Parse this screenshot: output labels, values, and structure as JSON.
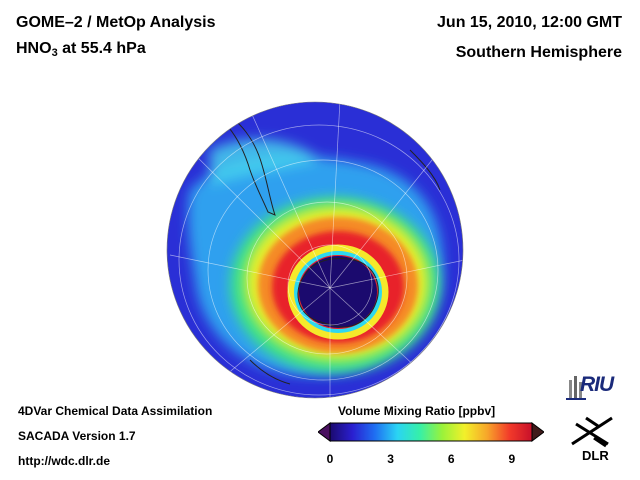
{
  "header": {
    "title_line1": "GOME–2 / MetOp Analysis",
    "species_base": "HNO",
    "species_sub": "3",
    "level_text": " at 55.4 hPa",
    "date": "Jun 15, 2010, 12:00 GMT",
    "region": "Southern Hemisphere"
  },
  "footer": {
    "line1": "4DVar Chemical Data Assimilation",
    "line2": "SACADA Version 1.7",
    "line3": "http://wdc.dlr.de"
  },
  "colorbar": {
    "title": "Volume Mixing Ratio [ppbv]",
    "min": 0,
    "max": 10,
    "ticks": [
      "0",
      "3",
      "6",
      "9"
    ],
    "tick_values": [
      0,
      3,
      6,
      9
    ],
    "colors": [
      "#1b0a6e",
      "#2a1fd0",
      "#1f6ff2",
      "#2ad4f4",
      "#36f0a8",
      "#9af23a",
      "#f2f02a",
      "#f7a62a",
      "#f23a2a",
      "#c8102a"
    ]
  },
  "logos": {
    "riu": "RIU",
    "dlr": "DLR"
  },
  "map": {
    "projection": "orthographic",
    "center": "South Pole",
    "background_color": "#2a2fd6"
  }
}
